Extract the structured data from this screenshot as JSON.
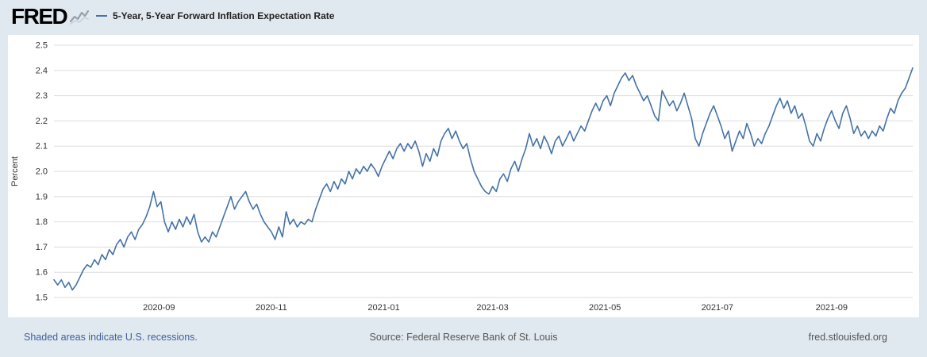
{
  "header": {
    "logo_text": "FRED"
  },
  "chart_data": {
    "type": "line",
    "title": "5-Year, 5-Year Forward Inflation Expectation Rate",
    "ylabel": "Percent",
    "ylim": [
      1.5,
      2.5
    ],
    "y_ticks": [
      "1.5",
      "1.6",
      "1.7",
      "1.8",
      "1.9",
      "2.0",
      "2.1",
      "2.2",
      "2.3",
      "2.4",
      "2.5"
    ],
    "x_ticks": [
      {
        "label": "2020-09",
        "pos": 0.1223
      },
      {
        "label": "2020-11",
        "pos": 0.2532
      },
      {
        "label": "2021-01",
        "pos": 0.3841
      },
      {
        "label": "2021-03",
        "pos": 0.5107
      },
      {
        "label": "2021-05",
        "pos": 0.6416
      },
      {
        "label": "2021-07",
        "pos": 0.7725
      },
      {
        "label": "2021-09",
        "pos": 0.9056
      }
    ],
    "line_color": "#4572a7",
    "grid_color": "#dddddd",
    "grid": "horizontal-only",
    "legend_position": "top-left",
    "values": [
      1.57,
      1.55,
      1.57,
      1.54,
      1.56,
      1.53,
      1.55,
      1.58,
      1.61,
      1.63,
      1.62,
      1.65,
      1.63,
      1.67,
      1.65,
      1.69,
      1.67,
      1.71,
      1.73,
      1.7,
      1.74,
      1.76,
      1.73,
      1.77,
      1.79,
      1.82,
      1.86,
      1.92,
      1.86,
      1.88,
      1.8,
      1.76,
      1.8,
      1.77,
      1.81,
      1.78,
      1.82,
      1.79,
      1.83,
      1.76,
      1.72,
      1.74,
      1.72,
      1.76,
      1.74,
      1.78,
      1.82,
      1.86,
      1.9,
      1.85,
      1.88,
      1.9,
      1.92,
      1.88,
      1.85,
      1.87,
      1.83,
      1.8,
      1.78,
      1.76,
      1.73,
      1.78,
      1.74,
      1.84,
      1.79,
      1.81,
      1.78,
      1.8,
      1.79,
      1.81,
      1.8,
      1.85,
      1.89,
      1.93,
      1.95,
      1.92,
      1.96,
      1.93,
      1.97,
      1.95,
      2.0,
      1.97,
      2.01,
      1.99,
      2.02,
      2.0,
      2.03,
      2.01,
      1.98,
      2.02,
      2.05,
      2.08,
      2.05,
      2.09,
      2.11,
      2.08,
      2.11,
      2.09,
      2.12,
      2.08,
      2.02,
      2.07,
      2.04,
      2.09,
      2.06,
      2.12,
      2.15,
      2.17,
      2.13,
      2.16,
      2.12,
      2.09,
      2.11,
      2.05,
      2.0,
      1.97,
      1.94,
      1.92,
      1.91,
      1.94,
      1.92,
      1.97,
      1.99,
      1.96,
      2.01,
      2.04,
      2.0,
      2.05,
      2.09,
      2.15,
      2.1,
      2.13,
      2.09,
      2.14,
      2.11,
      2.07,
      2.12,
      2.14,
      2.1,
      2.13,
      2.16,
      2.12,
      2.15,
      2.18,
      2.16,
      2.2,
      2.24,
      2.27,
      2.24,
      2.28,
      2.3,
      2.26,
      2.31,
      2.34,
      2.37,
      2.39,
      2.36,
      2.38,
      2.34,
      2.31,
      2.28,
      2.3,
      2.26,
      2.22,
      2.2,
      2.32,
      2.29,
      2.26,
      2.28,
      2.24,
      2.27,
      2.31,
      2.26,
      2.21,
      2.13,
      2.1,
      2.15,
      2.19,
      2.23,
      2.26,
      2.22,
      2.18,
      2.13,
      2.16,
      2.08,
      2.12,
      2.16,
      2.13,
      2.19,
      2.15,
      2.1,
      2.13,
      2.11,
      2.15,
      2.18,
      2.22,
      2.26,
      2.29,
      2.25,
      2.28,
      2.23,
      2.26,
      2.21,
      2.23,
      2.18,
      2.12,
      2.1,
      2.15,
      2.12,
      2.17,
      2.21,
      2.24,
      2.2,
      2.17,
      2.23,
      2.26,
      2.21,
      2.15,
      2.18,
      2.14,
      2.16,
      2.13,
      2.16,
      2.14,
      2.18,
      2.16,
      2.21,
      2.25,
      2.23,
      2.28,
      2.31,
      2.33,
      2.37,
      2.41
    ]
  },
  "footer": {
    "recession_note": "Shaded areas indicate U.S. recessions.",
    "source": "Source: Federal Reserve Bank of St. Louis",
    "site": "fred.stlouisfed.org"
  }
}
